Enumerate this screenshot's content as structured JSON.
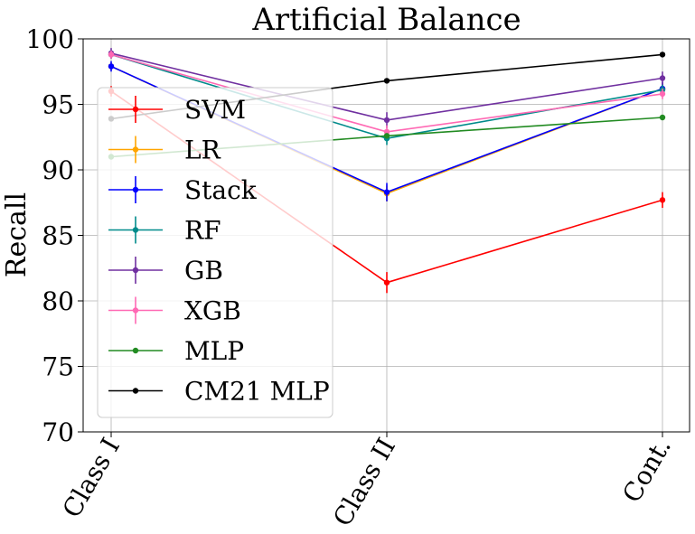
{
  "chart_data": {
    "type": "line",
    "title": "Artificial Balance",
    "xlabel": "",
    "ylabel": "Recall",
    "categories": [
      "Class I",
      "Class II",
      "Cont."
    ],
    "ylim": [
      70,
      100
    ],
    "yticks": [
      70,
      75,
      80,
      85,
      90,
      95,
      100
    ],
    "grid": true,
    "legend_position": "left",
    "error_bars": true,
    "series": [
      {
        "name": "SVM",
        "color": "#ff0000",
        "values": [
          96.0,
          81.4,
          87.7
        ],
        "errors": [
          0.4,
          0.8,
          0.6
        ]
      },
      {
        "name": "LR",
        "color": "#ffa500",
        "values": [
          97.9,
          88.2,
          96.2
        ],
        "errors": [
          0.3,
          0.6,
          0.4
        ]
      },
      {
        "name": "Stack",
        "color": "#0000ff",
        "values": [
          97.9,
          88.3,
          96.2
        ],
        "errors": [
          0.4,
          0.7,
          0.5
        ]
      },
      {
        "name": "RF",
        "color": "#008b8b",
        "values": [
          98.8,
          92.4,
          96.1
        ],
        "errors": [
          0.3,
          0.5,
          0.4
        ]
      },
      {
        "name": "GB",
        "color": "#7030a0",
        "values": [
          98.9,
          93.8,
          97.0
        ],
        "errors": [
          0.4,
          0.6,
          0.5
        ]
      },
      {
        "name": "XGB",
        "color": "#ff69b4",
        "values": [
          98.8,
          92.9,
          95.8
        ],
        "errors": [
          0.3,
          0.5,
          0.4
        ]
      },
      {
        "name": "MLP",
        "color": "#228b22",
        "values": [
          91.0,
          92.6,
          94.0
        ],
        "errors": [
          0,
          0,
          0
        ]
      },
      {
        "name": "CM21 MLP",
        "color": "#000000",
        "values": [
          93.9,
          96.8,
          98.8
        ],
        "errors": [
          0,
          0,
          0
        ]
      }
    ]
  }
}
